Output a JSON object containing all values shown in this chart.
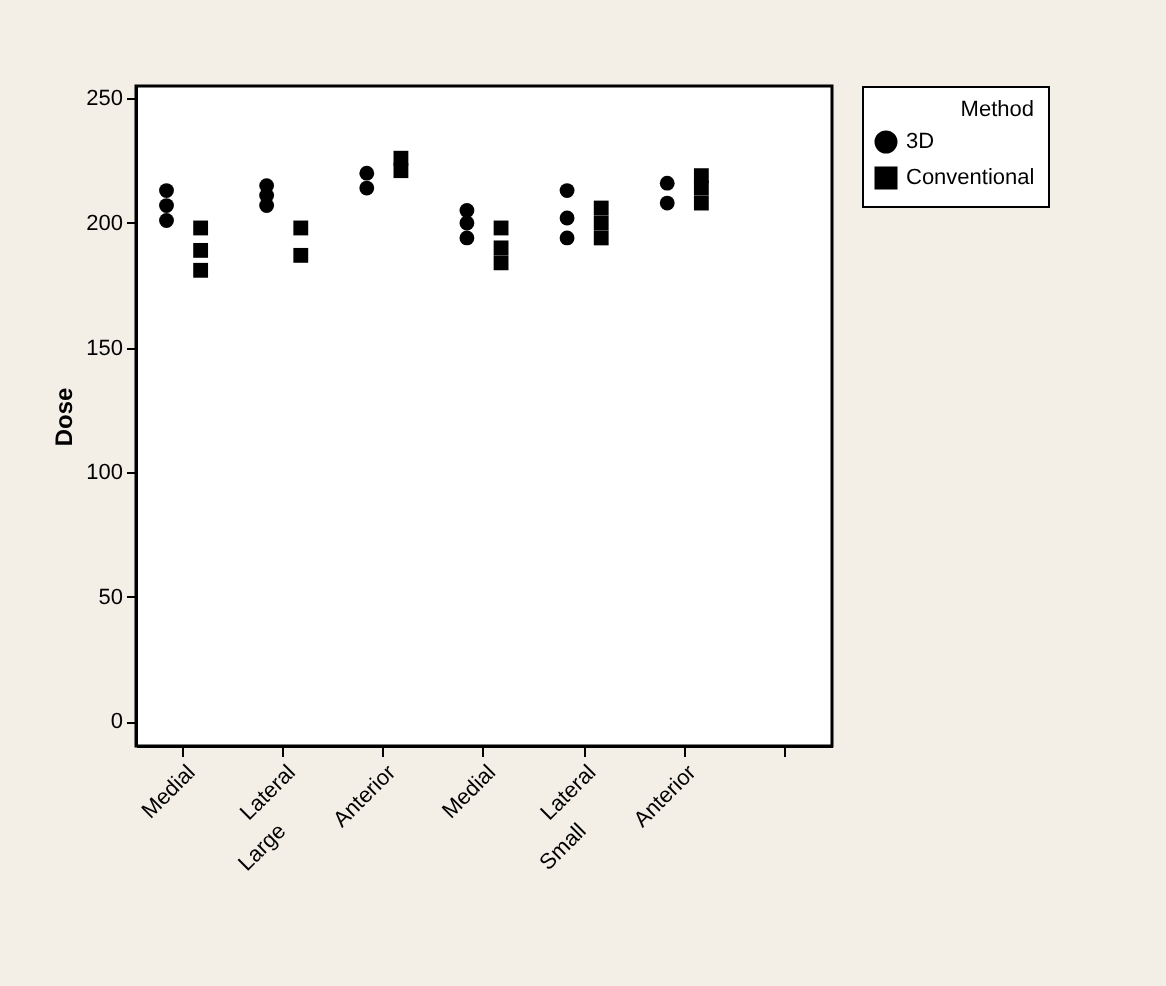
{
  "chart_data": {
    "type": "scatter",
    "ylabel": "Dose",
    "legend_title": "Method",
    "legend": "top right",
    "grid": false,
    "categories": [
      "Medial",
      "Lateral",
      "Anterior",
      "Medial",
      "Lateral",
      "Anterior",
      null
    ],
    "annotations": [
      "Large",
      "Small"
    ],
    "ylim": [
      -10,
      255
    ],
    "yticks": [
      0,
      50,
      100,
      150,
      200,
      250
    ],
    "series": [
      {
        "name": "3D",
        "color": "#000000",
        "marker": "circle",
        "values": [
          213,
          215,
          220,
          205,
          213,
          216,
          null
        ]
      },
      {
        "color": "#000000",
        "marker": "circle",
        "values": [
          207,
          211,
          214,
          200,
          202,
          208,
          null
        ]
      },
      {
        "color": "#000000",
        "marker": "circle",
        "values": [
          201,
          207,
          null,
          194,
          194,
          null,
          null
        ]
      },
      {
        "name": "Conventional",
        "color": "#000000",
        "marker": "square",
        "values": [
          198,
          198,
          226,
          198,
          206,
          219,
          null
        ]
      },
      {
        "color": "#000000",
        "marker": "square",
        "values": [
          189,
          187,
          221,
          190,
          200,
          214,
          null
        ]
      },
      {
        "color": "#000000",
        "marker": "square",
        "values": [
          181,
          null,
          null,
          184,
          194,
          208,
          null
        ]
      }
    ]
  }
}
